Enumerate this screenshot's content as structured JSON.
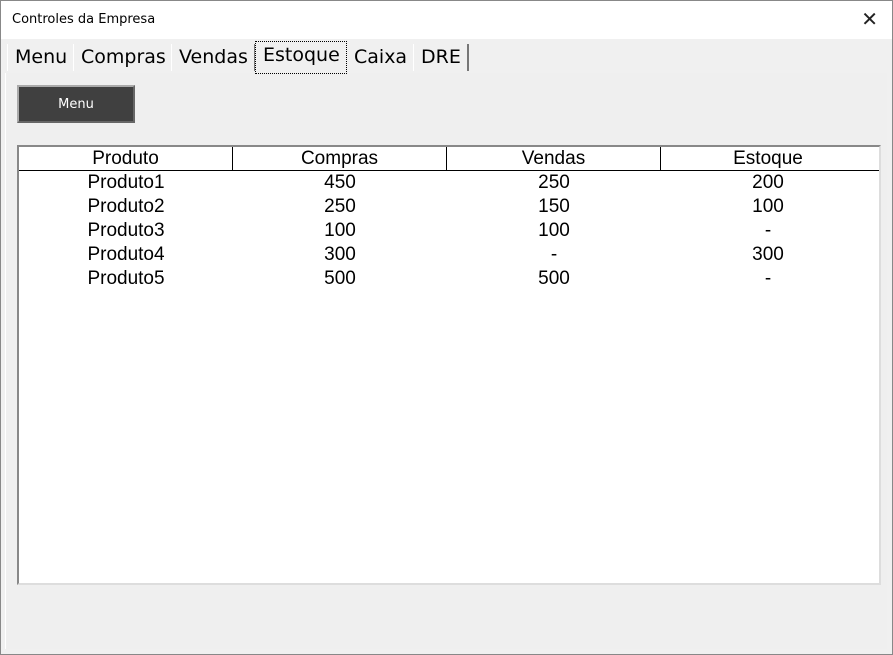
{
  "window": {
    "title": "Controles da Empresa",
    "close": "✕"
  },
  "tabs": [
    "Menu",
    "Compras",
    "Vendas",
    "Estoque",
    "Caixa",
    "DRE"
  ],
  "active_tab": "Estoque",
  "menu_button": "Menu",
  "table": {
    "columns": [
      "Produto",
      "Compras",
      "Vendas",
      "Estoque"
    ],
    "rows": [
      [
        "Produto1",
        "450",
        "250",
        "200"
      ],
      [
        "Produto2",
        "250",
        "150",
        "100"
      ],
      [
        "Produto3",
        "100",
        "100",
        "-"
      ],
      [
        "Produto4",
        "300",
        "-",
        "300"
      ],
      [
        "Produto5",
        "500",
        "500",
        "-"
      ]
    ]
  }
}
